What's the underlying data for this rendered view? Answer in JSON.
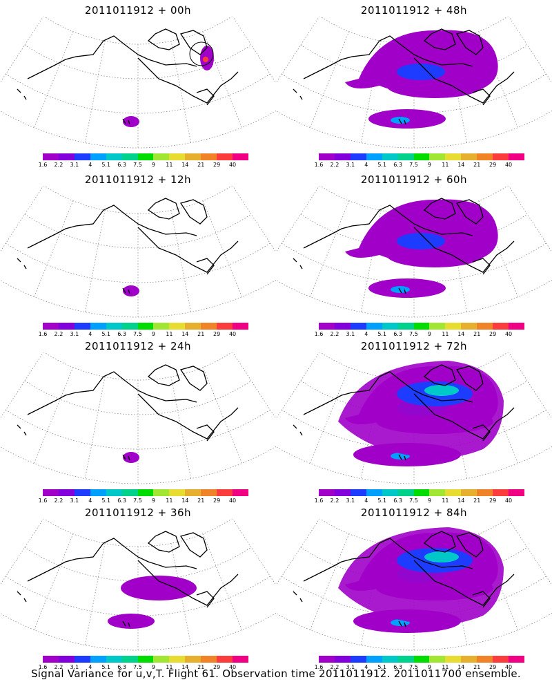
{
  "panels": [
    {
      "title": "2011011912 + 00h"
    },
    {
      "title": "2011011912 + 48h"
    },
    {
      "title": "2011011912 + 12h"
    },
    {
      "title": "2011011912 + 60h"
    },
    {
      "title": "2011011912 + 24h"
    },
    {
      "title": "2011011912 + 72h"
    },
    {
      "title": "2011011912 + 36h"
    },
    {
      "title": "2011011912 + 84h"
    }
  ],
  "colorbar": {
    "labels": [
      "1.6",
      "2.2",
      "3.1",
      "4",
      "5.1",
      "6.3",
      "7.5",
      "9",
      "11",
      "14",
      "21",
      "29",
      "40"
    ],
    "colors": [
      "#a000c8",
      "#8200dc",
      "#1e3cff",
      "#00a0ff",
      "#00c8c8",
      "#00d28c",
      "#00dc00",
      "#a0e632",
      "#e6dc32",
      "#e6af2d",
      "#f08228",
      "#fa3c3c",
      "#f00082"
    ]
  },
  "caption": "Signal Variance for u,v,T. Flight 61. Observation time 2011011912. 2011011700 ensemble."
}
